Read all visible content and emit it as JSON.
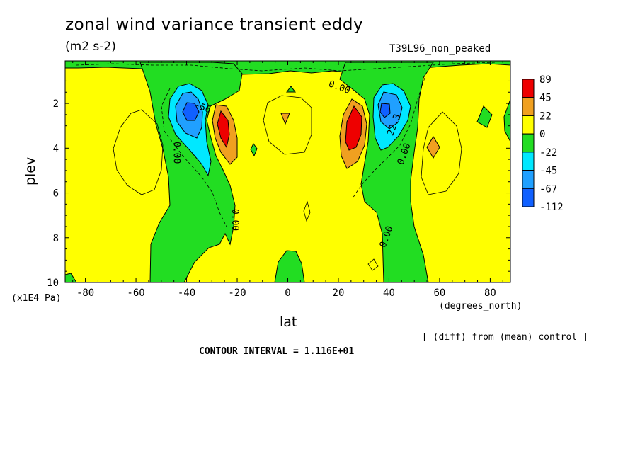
{
  "chart_data": {
    "type": "heatmap",
    "title": "zonal wind variance transient eddy",
    "units": "(m2 s-2)",
    "subtitle": "T39L96_non_peaked",
    "xlabel": "lat",
    "ylabel": "plev",
    "x_units": "(degrees_north)",
    "y_units": "(x1E4 Pa)",
    "note": "[ (diff) from (mean) control ]",
    "contour_interval_text": "CONTOUR INTERVAL = 1.116E+01",
    "x_ticks": [
      -80,
      -60,
      -40,
      -20,
      0,
      20,
      40,
      60,
      80
    ],
    "y_ticks": [
      2,
      4,
      6,
      8,
      10
    ],
    "xlim": [
      -88,
      88
    ],
    "ylim": [
      0.1,
      10
    ],
    "y_inverted": true,
    "colorbar": {
      "labels": [
        "89",
        "45",
        "22",
        "0",
        "-22",
        "-45",
        "-67",
        "-112"
      ],
      "colors": [
        "#ee0000",
        "#f0a020",
        "#ffff00",
        "#22dd22",
        "#00e8ff",
        "#20a0ff",
        "#1060ff"
      ]
    },
    "contour_labels": [
      {
        "text": "0.00",
        "lat": 20,
        "plev": 1.4
      },
      {
        "text": "0.00",
        "lat": -45,
        "plev": 4.2
      },
      {
        "text": "0.00",
        "lat": -22,
        "plev": 7.2
      },
      {
        "text": "0.00",
        "lat": 40,
        "plev": 8.0
      },
      {
        "text": "0.00",
        "lat": 47,
        "plev": 4.3
      },
      {
        "text": "22.3",
        "lat": 43,
        "plev": 3.0
      },
      {
        "text": "-56",
        "lat": -34,
        "plev": 2.3
      }
    ],
    "features": [
      {
        "kind": "max",
        "lat": -25,
        "plev": 3.2,
        "value": 89
      },
      {
        "kind": "max",
        "lat": 27,
        "plev": 3.2,
        "value": 89
      },
      {
        "kind": "min",
        "lat": -38,
        "plev": 2.4,
        "value": -112
      },
      {
        "kind": "min",
        "lat": 39,
        "plev": 2.3,
        "value": -112
      }
    ]
  }
}
